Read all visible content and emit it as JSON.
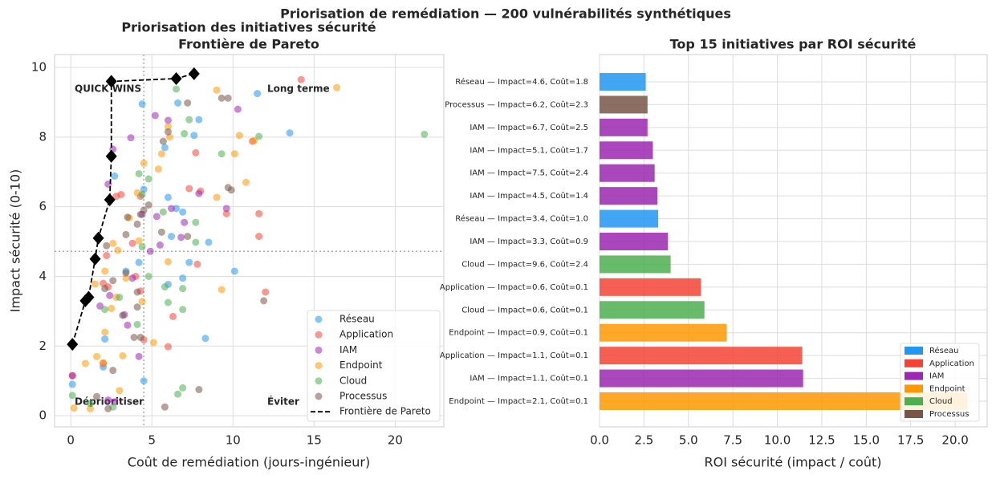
{
  "title": "Priorisation de remédiation — 200 vulnérabilités synthétiques",
  "chart_data": [
    {
      "type": "scatter",
      "title": "Priorisation des initiatives sécurité",
      "subtitle": "Frontière de Pareto",
      "x_label": "Coût de remédiation (jours-ingénieur)",
      "y_label": "Impact sécurité (0-10)",
      "xlim": [
        -1,
        23
      ],
      "ylim": [
        -0.32,
        10.37
      ],
      "xticks": [
        0,
        5,
        10,
        15,
        20
      ],
      "yticks": [
        0,
        2,
        4,
        6,
        8,
        10
      ],
      "grid": true,
      "legend": "lower right",
      "reference_lines": {
        "x": 4.5,
        "y": 4.72,
        "color": "#aaaaaa"
      },
      "annotations": [
        {
          "text": "QUICK WINS",
          "color": "#66bb6a"
        },
        {
          "text": "Long terme",
          "color": "#ffa726"
        },
        {
          "text": "Déprioritiser",
          "color": "#aaaaaa"
        },
        {
          "text": "Éviter",
          "color": "#ef5350"
        }
      ],
      "series": [
        {
          "name": "Réseau",
          "color": "#2196f3",
          "x": [
            4.4,
            6.6,
            7.9,
            11.5,
            13.5,
            5.8,
            7.6,
            4.5,
            6.0,
            6.5,
            6.9,
            6.2,
            8.5,
            10.1,
            7.3,
            6.9,
            6.0,
            3.4,
            4.2,
            2.1,
            8.3,
            0.1,
            2.0,
            4.5,
            2.7
          ],
          "y": [
            8.95,
            8.98,
            8.5,
            9.25,
            8.12,
            7.7,
            8.05,
            6.5,
            6.27,
            5.95,
            5.85,
            5.15,
            4.98,
            4.15,
            4.4,
            3.95,
            3.77,
            4.15,
            4.4,
            2.2,
            2.22,
            0.9,
            1.4,
            1.0,
            6.88
          ]
        },
        {
          "name": "Application",
          "color": "#f44336",
          "x": [
            14.2,
            7.7,
            11.2,
            8.0,
            7.3,
            11.6,
            9.6,
            11.6,
            7.8,
            12.0,
            4.3,
            6.3,
            4.0,
            2.3,
            2.2,
            3.1,
            2.8,
            6.0,
            4.5,
            2.0,
            0.1,
            4.3,
            3.8,
            2.0
          ],
          "y": [
            9.65,
            7.55,
            7.88,
            6.45,
            6.52,
            5.8,
            5.8,
            5.15,
            4.35,
            3.55,
            3.58,
            2.85,
            4.0,
            3.7,
            4.6,
            6.35,
            6.3,
            1.98,
            2.18,
            1.5,
            1.15,
            6.3,
            4.95,
            3.8
          ]
        },
        {
          "name": "IAM",
          "color": "#9c27b0",
          "x": [
            10.3,
            5.2,
            6.0,
            3.7,
            2.6,
            7.9,
            6.2,
            9.6,
            5.3,
            7.0,
            4.4,
            4.9,
            5.5,
            6.8,
            3.8,
            2.4,
            1.8,
            3.3,
            3.5,
            4.2,
            2.3,
            2.7,
            0.1,
            2.3
          ],
          "y": [
            8.8,
            8.62,
            8.48,
            7.98,
            7.65,
            6.38,
            5.95,
            5.95,
            5.72,
            5.55,
            5.78,
            4.72,
            4.9,
            5.12,
            3.95,
            3.45,
            3.15,
            2.9,
            2.6,
            1.7,
            0.45,
            0.4,
            1.15,
            6.65
          ]
        },
        {
          "name": "Endpoint",
          "color": "#ff9800",
          "x": [
            9.0,
            16.4,
            6.0,
            6.1,
            10.4,
            11.3,
            10.1,
            5.6,
            5.4,
            4.5,
            10.8,
            9.0,
            4.1,
            3.6,
            4.2,
            2.6,
            2.9,
            6.0,
            1.5,
            2.1,
            3.4,
            9.3,
            2.5,
            2.8,
            2.1,
            3.2,
            1.6,
            2.0,
            0.2,
            1.2,
            3.0,
            0.9,
            5.1,
            4.4
          ],
          "y": [
            9.35,
            9.42,
            8.3,
            8.0,
            8.05,
            7.9,
            7.52,
            7.52,
            7.08,
            7.25,
            6.7,
            6.27,
            6.4,
            5.68,
            5.02,
            4.95,
            4.75,
            4.42,
            3.78,
            4.15,
            3.95,
            3.62,
            3.08,
            3.4,
            2.4,
            1.72,
            1.7,
            1.52,
            0.22,
            0.2,
            0.72,
            1.5,
            2.1,
            3.28
          ]
        },
        {
          "name": "Cloud",
          "color": "#4caf50",
          "x": [
            21.8,
            11.6,
            9.3,
            7.3,
            6.5,
            7.0,
            4.2,
            4.8,
            4.4,
            5.7,
            7.7,
            7.7,
            4.8,
            5.8,
            6.9,
            6.0,
            6.9,
            3.0,
            2.1,
            4.1,
            1.2,
            2.6,
            6.6,
            6.9,
            0.1,
            4.4
          ],
          "y": [
            8.08,
            8.02,
            7.52,
            8.5,
            9.38,
            8.1,
            6.95,
            6.8,
            6.35,
            5.85,
            5.55,
            4.98,
            4.0,
            3.7,
            3.65,
            3.25,
            3.05,
            3.4,
            3.05,
            2.62,
            0.35,
            0.25,
            0.62,
            0.8,
            0.58,
            4.85
          ]
        },
        {
          "name": "Processus",
          "color": "#795548",
          "x": [
            7.2,
            9.7,
            9.3,
            6.0,
            5.7,
            9.7,
            9.9,
            4.8,
            3.5,
            4.3,
            4.5,
            4.1,
            3.4,
            7.2,
            5.6,
            2.2,
            2.6,
            3.4,
            4.1,
            2.1,
            4.1,
            3.2,
            11.9,
            3.9,
            2.6,
            1.6,
            2.3,
            5.8,
            7.9,
            4.3
          ],
          "y": [
            8.98,
            9.12,
            9.12,
            8.15,
            7.88,
            6.55,
            6.48,
            6.05,
            5.7,
            5.78,
            5.9,
            5.5,
            5.2,
            5.15,
            5.27,
            4.88,
            3.88,
            4.1,
            3.55,
            3.65,
            3.12,
            2.88,
            3.3,
            2.25,
            1.3,
            0.55,
            0.2,
            0.25,
            0.75,
            2.25
          ]
        }
      ],
      "frontier": {
        "name": "Frontière de Pareto",
        "color": "#000000",
        "x": [
          0.1,
          0.9,
          1.1,
          1.5,
          1.7,
          2.4,
          2.5,
          2.5,
          6.5,
          7.6
        ],
        "y": [
          2.05,
          3.3,
          3.4,
          4.5,
          5.1,
          6.2,
          7.45,
          9.6,
          9.68,
          9.82
        ]
      }
    },
    {
      "type": "barh",
      "title": "Top 15 initiatives par ROI sécurité",
      "x_label": "ROI sécurité (impact / coût)",
      "xlim": [
        0,
        21.8
      ],
      "grid": true,
      "legend": "lower right",
      "xticks": [
        {
          "value": 0,
          "label": "0.0"
        },
        {
          "value": 2.5,
          "label": "2.5"
        },
        {
          "value": 5,
          "label": "5.0"
        },
        {
          "value": 7.5,
          "label": "7.5"
        },
        {
          "value": 10,
          "label": "10.0"
        },
        {
          "value": 12.5,
          "label": "12.5"
        },
        {
          "value": 15,
          "label": "15.0"
        },
        {
          "value": 17.5,
          "label": "17.5"
        },
        {
          "value": 20,
          "label": "20.0"
        }
      ],
      "categories": [
        "Réseau — Impact=4.6, Coût=1.8",
        "Processus — Impact=6.2, Coût=2.3",
        "IAM — Impact=6.7, Coût=2.5",
        "IAM — Impact=5.1, Coût=1.7",
        "IAM — Impact=7.5, Coût=2.4",
        "IAM — Impact=4.5, Coût=1.4",
        "Réseau — Impact=3.4, Coût=1.0",
        "IAM — Impact=3.3, Coût=0.9",
        "Cloud — Impact=9.6, Coût=2.4",
        "Application — Impact=0.6, Coût=0.1",
        "Cloud — Impact=0.6, Coût=0.1",
        "Endpoint — Impact=0.9, Coût=0.1",
        "Application — Impact=1.1, Coût=0.1",
        "IAM — Impact=1.1, Coût=0.1",
        "Endpoint — Impact=2.1, Coût=0.1"
      ],
      "values": [
        2.6,
        2.7,
        2.7,
        3.0,
        3.1,
        3.25,
        3.3,
        3.85,
        4.0,
        5.7,
        5.9,
        7.15,
        11.4,
        11.45,
        20.7
      ],
      "colors": [
        "#2196f3",
        "#795548",
        "#9c27b0",
        "#9c27b0",
        "#9c27b0",
        "#9c27b0",
        "#2196f3",
        "#9c27b0",
        "#4caf50",
        "#f44336",
        "#4caf50",
        "#ff9800",
        "#f44336",
        "#9c27b0",
        "#ff9800"
      ],
      "legend_items": [
        {
          "name": "Réseau",
          "color": "#2196f3"
        },
        {
          "name": "Application",
          "color": "#f44336"
        },
        {
          "name": "IAM",
          "color": "#9c27b0"
        },
        {
          "name": "Endpoint",
          "color": "#ff9800"
        },
        {
          "name": "Cloud",
          "color": "#4caf50"
        },
        {
          "name": "Processus",
          "color": "#795548"
        }
      ]
    }
  ]
}
